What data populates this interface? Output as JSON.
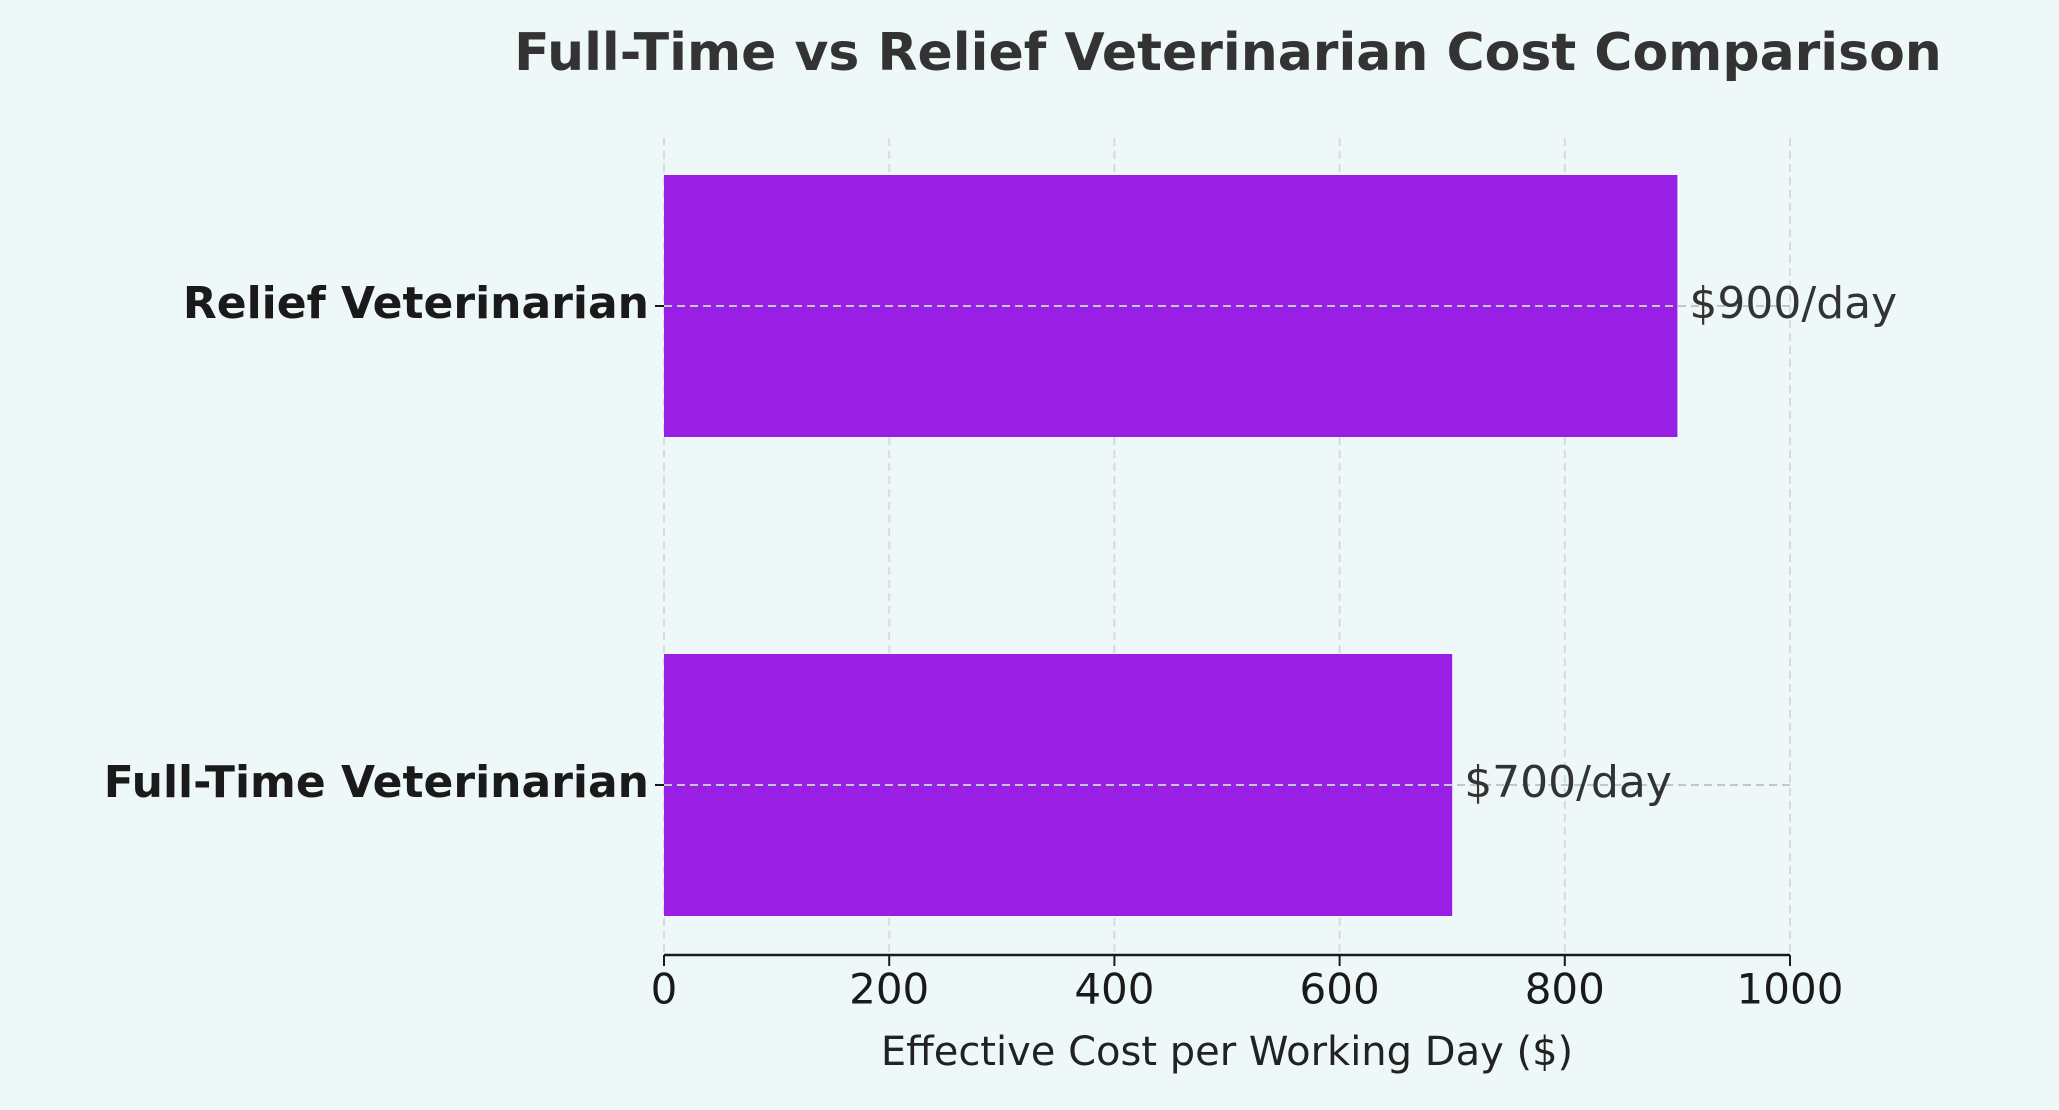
{
  "chart_data": {
    "type": "bar",
    "orientation": "horizontal",
    "title": "Full-Time vs Relief Veterinarian Cost Comparison",
    "categories": [
      "Full-Time Veterinarian",
      "Relief Veterinarian"
    ],
    "values": [
      700,
      900
    ],
    "value_labels": [
      "$700/day",
      "$900/day"
    ],
    "color": "#9a1fe4",
    "xlabel": "Effective Cost per Working Day ($)",
    "xlim": [
      0,
      1000
    ],
    "xticks": [
      0,
      200,
      400,
      600,
      800,
      1000
    ],
    "grid": true
  }
}
